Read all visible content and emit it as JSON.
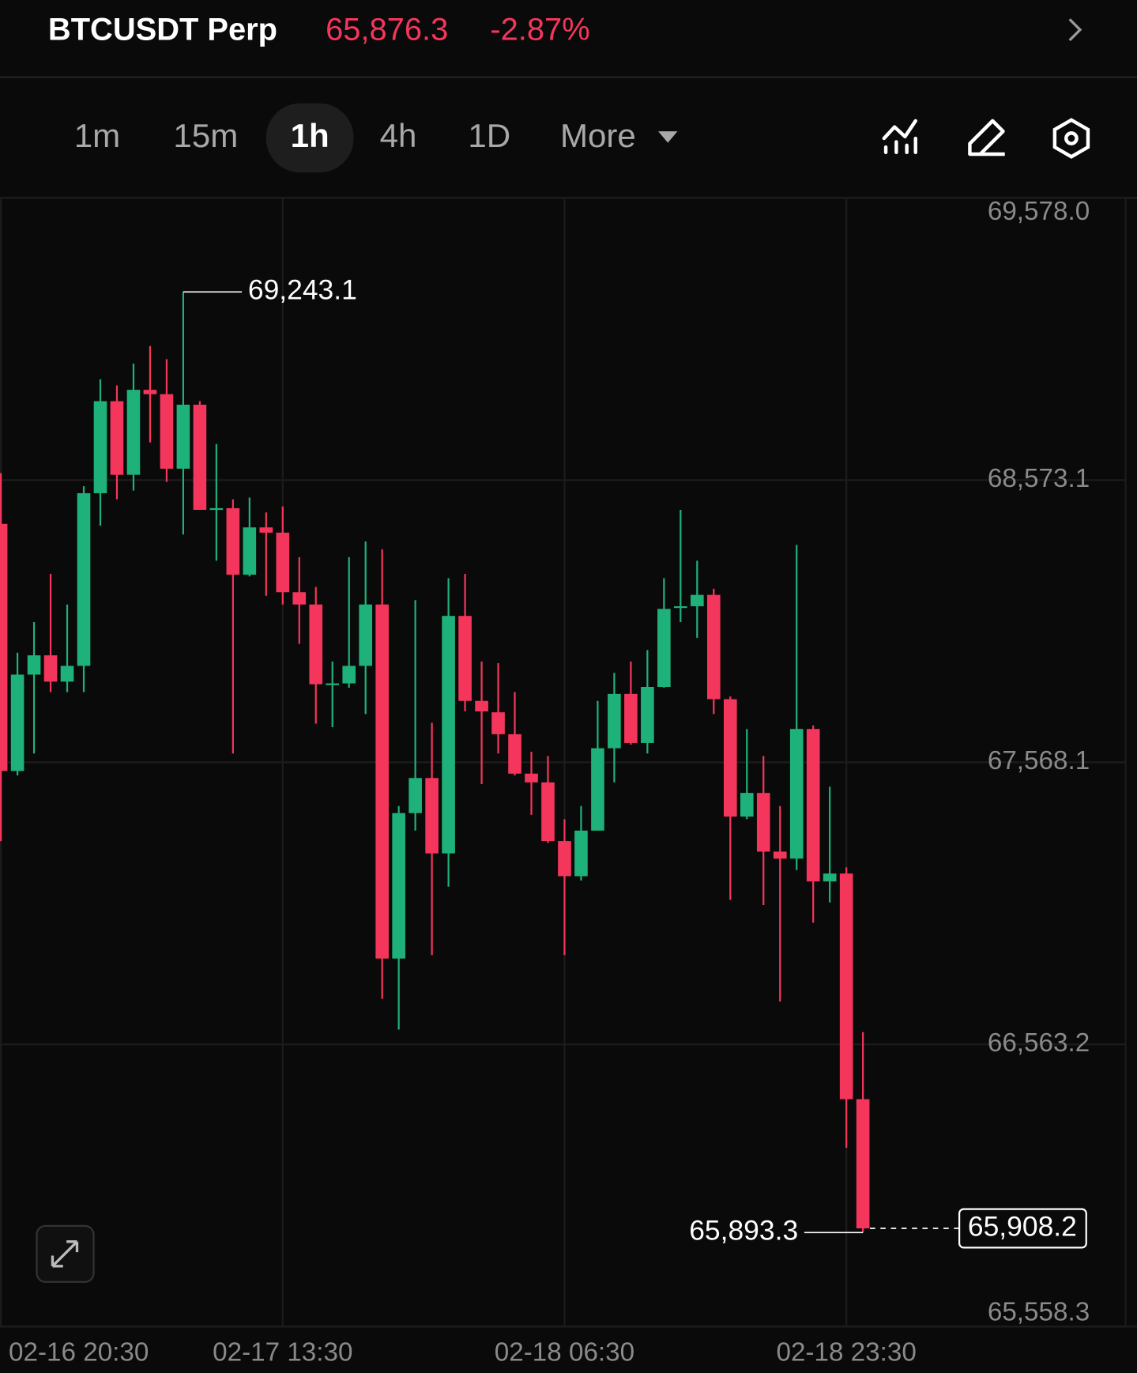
{
  "header": {
    "symbol": "BTCUSDT Perp",
    "price": "65,876.3",
    "change": "-2.87%"
  },
  "tabs": [
    "1m",
    "15m",
    "1h",
    "4h",
    "1D",
    "More"
  ],
  "chart_data": {
    "type": "candlestick",
    "categories": [
      "02-16 20:30",
      null,
      null,
      null,
      null,
      null,
      null,
      null,
      null,
      null,
      null,
      null,
      null,
      null,
      null,
      null,
      null,
      "02-17 13:30",
      null,
      null,
      null,
      null,
      null,
      null,
      null,
      null,
      null,
      null,
      null,
      null,
      null,
      null,
      null,
      null,
      "02-18 06:30",
      null,
      null,
      null,
      null,
      null,
      null,
      null,
      null,
      null,
      null,
      null,
      null,
      null,
      null,
      null,
      null,
      "02-18 23:30",
      null
    ],
    "open": [
      68417.0,
      67537.0,
      67880.2,
      67948.9,
      67855.3,
      67911.4,
      68526.3,
      68854.0,
      68591.8,
      68894.5,
      68879.0,
      68613.6,
      68841.5,
      68467.0,
      68473.0,
      68236.0,
      68404.5,
      68385.8,
      68173.6,
      68130.0,
      67845.9,
      67849.0,
      67911.4,
      68130.0,
      66869.1,
      67387.1,
      67512.0,
      67243.6,
      68089.3,
      67786.6,
      67746.0,
      67668.0,
      67527.6,
      67496.4,
      67287.3,
      67162.4,
      67324.7,
      67618.1,
      67811.6,
      67636.8,
      67836.5,
      68120.0,
      68123.7,
      68164.2,
      67792.8,
      67374.6,
      67458.9,
      67249.8,
      67224.8,
      67686.7,
      67143.7,
      67171.8,
      66368.2
    ],
    "high": [
      68598.0,
      67958.3,
      68067.5,
      68239.0,
      68130.0,
      68551.0,
      68932.0,
      68910.0,
      68988.0,
      69050.6,
      69003.8,
      69243.1,
      68854.0,
      68701.0,
      68504.4,
      68510.7,
      68457.6,
      68479.4,
      68298.4,
      68192.3,
      67927.0,
      68298.4,
      68354.6,
      68326.5,
      67412.1,
      68145.5,
      67708.6,
      68223.5,
      68239.0,
      67927.0,
      67920.8,
      67817.8,
      67605.6,
      67590.0,
      67365.3,
      67412.1,
      67786.6,
      67886.5,
      67927.0,
      67967.6,
      68223.5,
      68467.0,
      68286.0,
      68186.0,
      67802.2,
      67686.7,
      67590.0,
      67412.1,
      68342.0,
      67699.2,
      67480.8,
      67193.6,
      66606.9
    ],
    "low": [
      67287.3,
      67521.3,
      67599.3,
      67817.8,
      67817.8,
      67817.8,
      68410.8,
      68504.4,
      68535.6,
      68707.0,
      68566.8,
      68379.6,
      68467.0,
      68286.0,
      67599.3,
      68229.8,
      68161.0,
      68130.0,
      67989.5,
      67705.5,
      67693.0,
      67833.4,
      67739.8,
      66725.5,
      66616.3,
      67324.7,
      66881.5,
      67125.0,
      67749.2,
      67490.1,
      67599.3,
      67521.3,
      67380.9,
      67281.0,
      66881.5,
      67146.8,
      67324.7,
      67496.4,
      67630.6,
      67599.3,
      67833.4,
      68067.5,
      68011.3,
      67739.8,
      67078.2,
      67365.3,
      67059.4,
      66716.1,
      67184.3,
      66997.0,
      67068.8,
      66195.0,
      65893.3
    ],
    "close": [
      67537.0,
      67880.2,
      67948.9,
      67855.3,
      67911.4,
      68526.3,
      68854.0,
      68591.8,
      68894.5,
      68879.0,
      68613.6,
      68841.5,
      68467.0,
      68473.0,
      68236.0,
      68404.5,
      68385.8,
      68173.6,
      68130.0,
      67845.9,
      67849.0,
      67911.4,
      68130.0,
      66869.1,
      67387.1,
      67512.0,
      67243.6,
      68089.3,
      67786.6,
      67749.2,
      67668.0,
      67527.6,
      67496.4,
      67287.3,
      67162.4,
      67324.7,
      67618.1,
      67811.6,
      67636.8,
      67836.5,
      68114.3,
      68123.7,
      68164.2,
      67792.8,
      67374.6,
      67458.9,
      67249.8,
      67224.8,
      67686.7,
      67143.7,
      67171.8,
      66368.2,
      65908.2
    ],
    "up_color": "#1fb17a",
    "down_color": "#f5365c",
    "ylim": [
      65558.3,
      69578.0
    ],
    "yticks": [
      {
        "value": 65558.3,
        "label": "65,558.3"
      },
      {
        "value": 66563.2,
        "label": "66,563.2"
      },
      {
        "value": 67568.1,
        "label": "67,568.1"
      },
      {
        "value": 68573.1,
        "label": "68,573.1"
      },
      {
        "value": 69578.0,
        "label": "69,578.0"
      }
    ],
    "grid": true,
    "high_label": {
      "value": 69243.1,
      "label": "69,243.1"
    },
    "low_label": {
      "value": 65893.3,
      "label": "65,893.3"
    },
    "last_price_label": {
      "value": 65908.2,
      "label": "65,908.2"
    }
  }
}
